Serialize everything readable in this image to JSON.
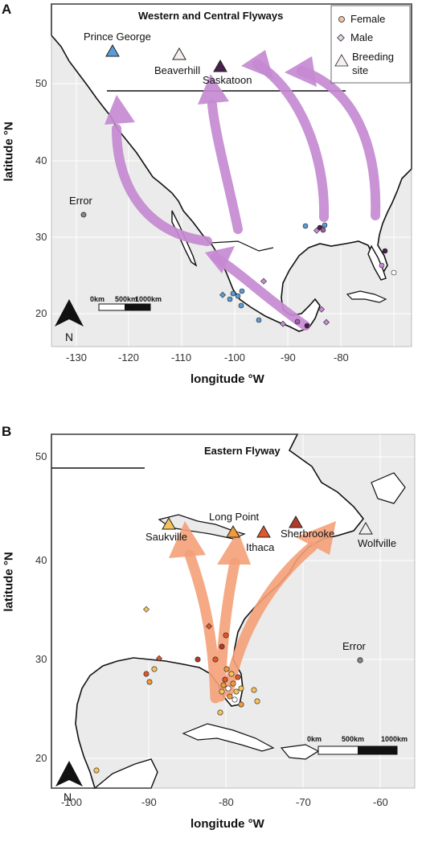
{
  "panel_a": {
    "letter": "A",
    "title": "Western and Central Flyways",
    "xlabel": "longitude °W",
    "ylabel": "latitude °N",
    "x_ticks": [
      "-130",
      "-120",
      "-110",
      "-100",
      "-90",
      "-80"
    ],
    "y_ticks": [
      "20",
      "30",
      "40",
      "50"
    ],
    "legend": {
      "female": "Female",
      "male": "Male",
      "breeding_line1": "Breeding",
      "breeding_line2": "site"
    },
    "sites": {
      "prince_george": "Prince George",
      "beaverhill": "Beaverhill",
      "saskatoon": "Saskatoon",
      "error": "Error"
    },
    "scale": {
      "zero": "0km",
      "mid": "500km",
      "end": "1000km"
    },
    "north": "N",
    "colors": {
      "arrow": "#c58ad2",
      "prince_george": "#5b9bd5",
      "beaverhill": "#f5f0ee",
      "saskatoon": "#4a1f4d"
    }
  },
  "panel_b": {
    "letter": "B",
    "title": "Eastern Flyway",
    "xlabel": "longitude °W",
    "ylabel": "latitude °N",
    "x_ticks": [
      "-100",
      "-90",
      "-80",
      "-70",
      "-60"
    ],
    "y_ticks": [
      "20",
      "30",
      "40",
      "50"
    ],
    "sites": {
      "saukville": "Saukville",
      "long_point": "Long Point",
      "ithaca": "Ithaca",
      "sherbrooke": "Sherbrooke",
      "wolfville": "Wolfville",
      "error": "Error"
    },
    "scale": {
      "zero": "0km",
      "mid": "500km",
      "end": "1000km"
    },
    "north": "N",
    "colors": {
      "arrow": "#f4a078",
      "saukville": "#f6c25a",
      "long_point": "#f19a3a",
      "ithaca": "#e0582a",
      "sherbrooke": "#b23a2a",
      "wolfville": "#eeeeee"
    }
  }
}
